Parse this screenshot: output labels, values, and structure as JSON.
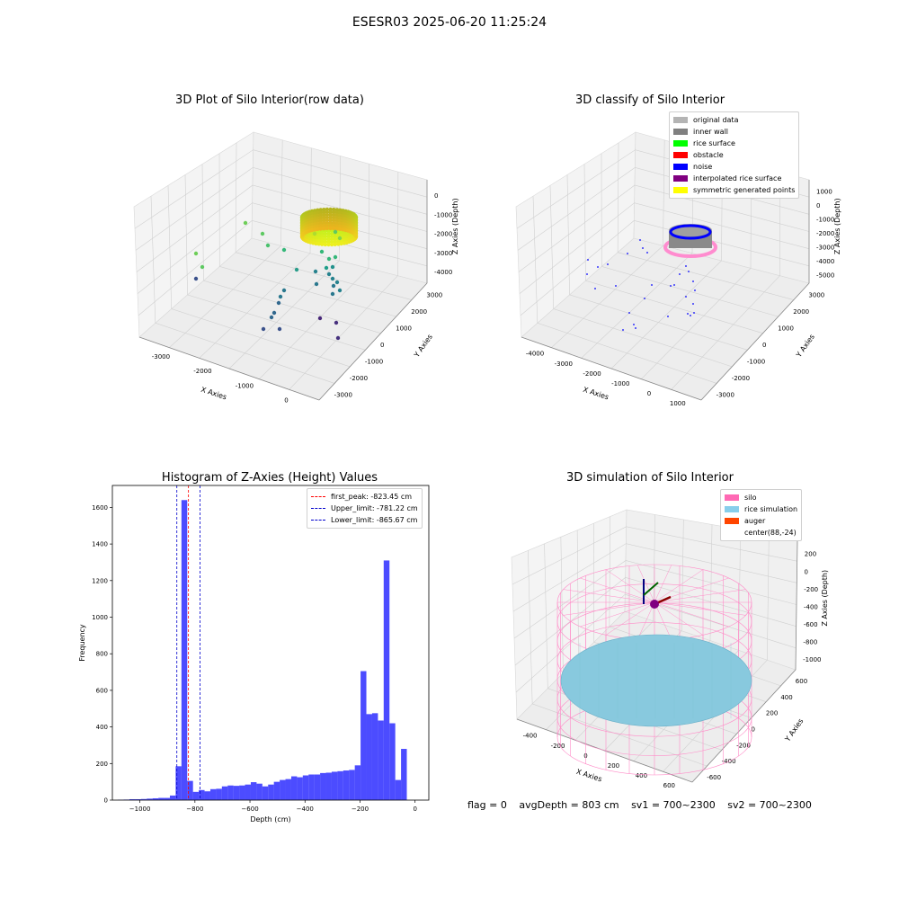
{
  "page_title": "ESESR03 2025-06-20 11:25:24",
  "chart_data": [
    {
      "type": "scatter",
      "title": "3D Plot of Silo Interior(row data)",
      "xlabel": "X Axies",
      "ylabel": "Y Axies",
      "zlabel": "Z Axies (Depth)",
      "x_ticks": [
        "-3000",
        "-2000",
        "-1000",
        "0"
      ],
      "y_ticks": [
        "-3000",
        "-2000",
        "-1000",
        "0",
        "1000",
        "2000",
        "3000"
      ],
      "z_ticks": [
        "-4000",
        "-3000",
        "-2000",
        "-1000",
        "0"
      ],
      "colormap": "viridis",
      "grid": true
    },
    {
      "type": "scatter",
      "title": "3D classify of Silo Interior",
      "xlabel": "X Axies",
      "ylabel": "Y Axies",
      "zlabel": "Z Axies (Depth)",
      "x_ticks": [
        "-4000",
        "-3000",
        "-2000",
        "-1000",
        "0",
        "1000"
      ],
      "y_ticks": [
        "-3000",
        "-2000",
        "-1000",
        "0",
        "1000",
        "2000",
        "3000"
      ],
      "z_ticks": [
        "-5000",
        "-4000",
        "-3000",
        "-2000",
        "-1000",
        "0",
        "1000"
      ],
      "legend_position": "top-right",
      "legend": [
        {
          "label": "original data",
          "color": "#b4b4b4"
        },
        {
          "label": "inner wall",
          "color": "#808080"
        },
        {
          "label": "rice surface",
          "color": "#00ff00"
        },
        {
          "label": "obstacle",
          "color": "#ff0000"
        },
        {
          "label": "noise",
          "color": "#0000ff"
        },
        {
          "label": "interpolated rice surface",
          "color": "#800080"
        },
        {
          "label": "symmetric generated points",
          "color": "#ffff00"
        }
      ],
      "grid": true
    },
    {
      "type": "bar",
      "title": "Histogram of Z-Axies (Height) Values",
      "xlabel": "Depth (cm)",
      "ylabel": "Frequency",
      "xlim": [
        -1100,
        50
      ],
      "ylim": [
        0,
        1720
      ],
      "x_ticks": [
        -1000,
        -800,
        -600,
        -400,
        -200,
        0
      ],
      "y_ticks": [
        0,
        200,
        400,
        600,
        800,
        1000,
        1200,
        1400,
        1600
      ],
      "bin_width": 21,
      "bin_start": -1080,
      "values": [
        2,
        3,
        5,
        5,
        6,
        8,
        10,
        12,
        12,
        25,
        185,
        1640,
        105,
        45,
        55,
        48,
        60,
        62,
        75,
        80,
        78,
        80,
        85,
        98,
        90,
        75,
        85,
        100,
        110,
        115,
        130,
        125,
        135,
        140,
        140,
        148,
        150,
        155,
        158,
        162,
        165,
        190,
        705,
        470,
        475,
        435,
        1310,
        420,
        110,
        280
      ],
      "bar_color": "#0000ff",
      "vlines": [
        {
          "label": "first_peak: -823.45 cm",
          "x": -823.45,
          "color": "#ff0000"
        },
        {
          "label": "Upper_limit: -781.22 cm",
          "x": -781.22,
          "color": "#0000cd"
        },
        {
          "label": "Lower_limit: -865.67 cm",
          "x": -865.67,
          "color": "#0000cd"
        }
      ],
      "legend_position": "top-right"
    },
    {
      "type": "scatter",
      "title": "3D simulation of Silo Interior",
      "xlabel": "X Axies",
      "ylabel": "Y Axies",
      "zlabel": "Z Axies (Depth)",
      "x_ticks": [
        "-400",
        "-200",
        "0",
        "200",
        "400",
        "600"
      ],
      "y_ticks": [
        "-600",
        "-400",
        "-200",
        "0",
        "200",
        "400",
        "600"
      ],
      "z_ticks": [
        "-1000",
        "-800",
        "-600",
        "-400",
        "-200",
        "0",
        "200"
      ],
      "legend_position": "top-right",
      "legend": [
        {
          "label": "silo",
          "color": "#ff69b4"
        },
        {
          "label": "rice simulation",
          "color": "#87ceeb"
        },
        {
          "label": "auger",
          "color": "#ff4500"
        },
        {
          "label": "center(88,-24)",
          "color": "#ffffff"
        }
      ],
      "grid": true
    }
  ],
  "footer": {
    "flag": "flag = 0",
    "avg_depth": "avgDepth = 803 cm",
    "sv1": "sv1 = 700~2300",
    "sv2": "sv2 = 700~2300"
  }
}
